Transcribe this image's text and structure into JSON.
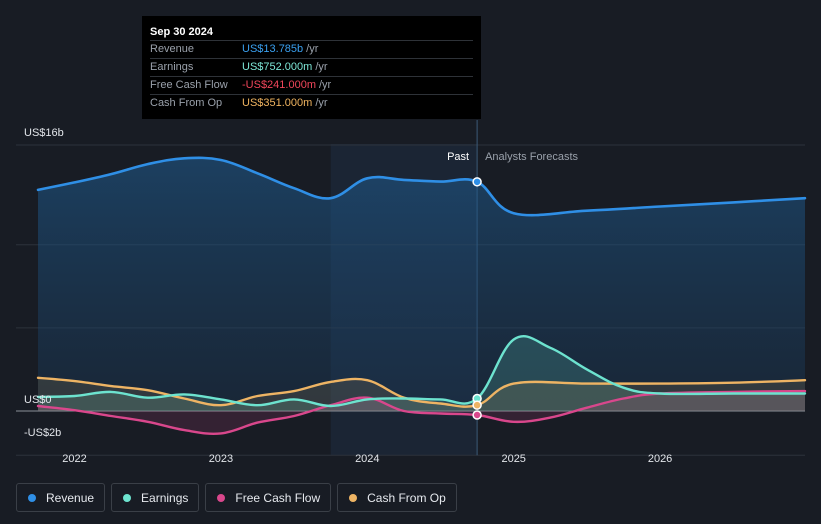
{
  "tooltip": {
    "date": "Sep 30 2024",
    "rows": [
      {
        "label": "Revenue",
        "value": "US$13.785b",
        "unit": "/yr",
        "color": "#3aa0f0"
      },
      {
        "label": "Earnings",
        "value": "US$752.000m",
        "unit": "/yr",
        "color": "#7ee8d8"
      },
      {
        "label": "Free Cash Flow",
        "value": "-US$241.000m",
        "unit": "/yr",
        "color": "#f0465a"
      },
      {
        "label": "Cash From Op",
        "value": "US$351.000m",
        "unit": "/yr",
        "color": "#f0b460"
      }
    ]
  },
  "sections": {
    "past": "Past",
    "forecast": "Analysts Forecasts"
  },
  "legend": [
    {
      "label": "Revenue",
      "color": "#2f8fe6"
    },
    {
      "label": "Earnings",
      "color": "#6de3cf"
    },
    {
      "label": "Free Cash Flow",
      "color": "#d9478c"
    },
    {
      "label": "Cash From Op",
      "color": "#eeb464"
    }
  ],
  "chart_data": {
    "type": "line",
    "y_unit": "US$ billions",
    "ylim": [
      -2,
      16
    ],
    "ytick_labels": [
      {
        "value": 16,
        "label": "US$16b"
      },
      {
        "value": 0,
        "label": "US$0"
      },
      {
        "value": -2,
        "label": "-US$2b"
      }
    ],
    "xtick_labels": [
      "2022",
      "2023",
      "2024",
      "2025",
      "2026"
    ],
    "xlim": [
      2021.6,
      2026.99
    ],
    "divider_x": 2024.75,
    "series": [
      {
        "name": "Revenue",
        "color": "#2f8fe6",
        "points": [
          [
            2021.75,
            13.3
          ],
          [
            2022.0,
            13.75
          ],
          [
            2022.25,
            14.25
          ],
          [
            2022.5,
            14.85
          ],
          [
            2022.75,
            15.2
          ],
          [
            2023.0,
            15.1
          ],
          [
            2023.25,
            14.3
          ],
          [
            2023.5,
            13.4
          ],
          [
            2023.75,
            12.8
          ],
          [
            2024.0,
            14.0
          ],
          [
            2024.25,
            13.9
          ],
          [
            2024.5,
            13.8
          ],
          [
            2024.75,
            13.785
          ],
          [
            2025.0,
            11.9
          ],
          [
            2025.5,
            12.05
          ],
          [
            2026.0,
            12.3
          ],
          [
            2026.5,
            12.55
          ],
          [
            2026.99,
            12.8
          ]
        ]
      },
      {
        "name": "Earnings",
        "color": "#6de3cf",
        "points": [
          [
            2021.75,
            0.85
          ],
          [
            2022.0,
            0.9
          ],
          [
            2022.25,
            1.15
          ],
          [
            2022.5,
            0.8
          ],
          [
            2022.75,
            1.0
          ],
          [
            2023.0,
            0.7
          ],
          [
            2023.25,
            0.35
          ],
          [
            2023.5,
            0.7
          ],
          [
            2023.75,
            0.3
          ],
          [
            2024.0,
            0.7
          ],
          [
            2024.25,
            0.75
          ],
          [
            2024.5,
            0.7
          ],
          [
            2024.75,
            0.752
          ],
          [
            2025.0,
            4.3
          ],
          [
            2025.25,
            3.8
          ],
          [
            2025.5,
            2.5
          ],
          [
            2025.75,
            1.4
          ],
          [
            2026.0,
            1.05
          ],
          [
            2026.5,
            1.05
          ],
          [
            2026.99,
            1.05
          ]
        ]
      },
      {
        "name": "Free Cash Flow",
        "color": "#d9478c",
        "points": [
          [
            2021.75,
            0.3
          ],
          [
            2022.0,
            0.05
          ],
          [
            2022.25,
            -0.3
          ],
          [
            2022.5,
            -0.65
          ],
          [
            2022.75,
            -1.15
          ],
          [
            2023.0,
            -1.35
          ],
          [
            2023.25,
            -0.7
          ],
          [
            2023.5,
            -0.3
          ],
          [
            2023.75,
            0.35
          ],
          [
            2024.0,
            0.8
          ],
          [
            2024.25,
            0.0
          ],
          [
            2024.5,
            -0.15
          ],
          [
            2024.75,
            -0.241
          ],
          [
            2025.0,
            -0.65
          ],
          [
            2025.25,
            -0.4
          ],
          [
            2025.5,
            0.2
          ],
          [
            2025.75,
            0.75
          ],
          [
            2026.0,
            1.05
          ],
          [
            2026.5,
            1.15
          ],
          [
            2026.99,
            1.2
          ]
        ]
      },
      {
        "name": "Cash From Op",
        "color": "#eeb464",
        "points": [
          [
            2021.75,
            2.0
          ],
          [
            2022.0,
            1.8
          ],
          [
            2022.25,
            1.5
          ],
          [
            2022.5,
            1.25
          ],
          [
            2022.75,
            0.75
          ],
          [
            2023.0,
            0.35
          ],
          [
            2023.25,
            0.9
          ],
          [
            2023.5,
            1.2
          ],
          [
            2023.75,
            1.75
          ],
          [
            2024.0,
            1.85
          ],
          [
            2024.25,
            0.8
          ],
          [
            2024.5,
            0.45
          ],
          [
            2024.75,
            0.351
          ],
          [
            2025.0,
            1.65
          ],
          [
            2025.5,
            1.65
          ],
          [
            2026.0,
            1.65
          ],
          [
            2026.5,
            1.7
          ],
          [
            2026.99,
            1.85
          ]
        ]
      }
    ]
  }
}
